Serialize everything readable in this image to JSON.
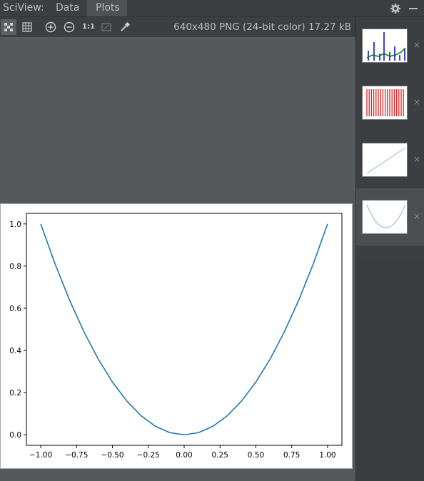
{
  "header": {
    "title": "SciView:",
    "tabs": [
      {
        "label": "Data"
      },
      {
        "label": "Plots"
      }
    ]
  },
  "toolbar": {
    "buttons": [
      {
        "icon": "checkerboard-icon"
      },
      {
        "icon": "grid-icon"
      },
      {
        "icon": "zoom-in-icon"
      },
      {
        "icon": "zoom-out-icon"
      },
      {
        "icon": "actual-size-icon",
        "label": "1:1"
      },
      {
        "icon": "fit-screen-icon"
      },
      {
        "icon": "color-picker-icon"
      }
    ],
    "image_info": "640x480 PNG (24-bit color) 17.27 kB"
  },
  "colors": {
    "accent": "#1f77b4",
    "panel": "#3c3f41",
    "canvas": "#55595c"
  },
  "thumbnails": [
    {
      "kind": "bar-line",
      "close": "×"
    },
    {
      "kind": "red-bars",
      "close": "×"
    },
    {
      "kind": "linear",
      "close": "×"
    },
    {
      "kind": "parabola",
      "close": "×",
      "selected": true
    }
  ],
  "chart_data": {
    "type": "line",
    "title": "",
    "xlabel": "",
    "ylabel": "",
    "xlim": [
      -1.0,
      1.0
    ],
    "ylim": [
      0.0,
      1.0
    ],
    "xticks": [
      "−1.00",
      "−0.75",
      "−0.50",
      "−0.25",
      "0.00",
      "0.25",
      "0.50",
      "0.75",
      "1.00"
    ],
    "yticks": [
      "0.0",
      "0.2",
      "0.4",
      "0.6",
      "0.8",
      "1.0"
    ],
    "grid": false,
    "series": [
      {
        "color": "#1f77b4",
        "x": [
          -1.0,
          -0.9,
          -0.8,
          -0.7,
          -0.6,
          -0.5,
          -0.4,
          -0.3,
          -0.2,
          -0.1,
          0.0,
          0.1,
          0.2,
          0.3,
          0.4,
          0.5,
          0.6,
          0.7,
          0.8,
          0.9,
          1.0
        ],
        "y": [
          1.0,
          0.81,
          0.64,
          0.49,
          0.36,
          0.25,
          0.16,
          0.09,
          0.04,
          0.01,
          0.0,
          0.01,
          0.04,
          0.09,
          0.16,
          0.25,
          0.36,
          0.49,
          0.64,
          0.81,
          1.0
        ]
      }
    ]
  }
}
